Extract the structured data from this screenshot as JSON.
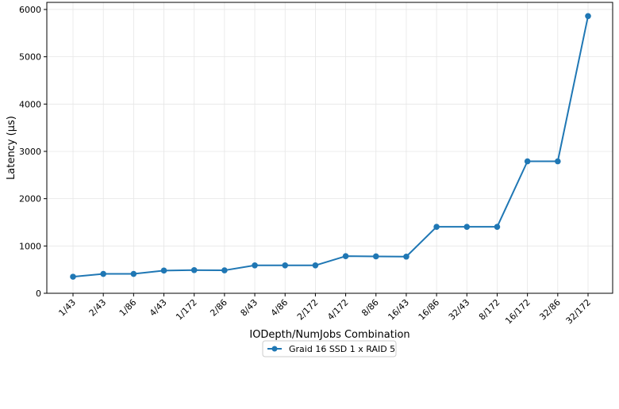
{
  "chart_data": {
    "type": "line",
    "title": "",
    "xlabel": "IODepth/NumJobs Combination",
    "ylabel": "Latency (µs)",
    "categories": [
      "1/43",
      "2/43",
      "1/86",
      "4/43",
      "1/172",
      "2/86",
      "8/43",
      "4/86",
      "2/172",
      "4/172",
      "8/86",
      "16/43",
      "16/86",
      "32/43",
      "8/172",
      "16/172",
      "32/86",
      "32/172"
    ],
    "ylim": [
      0,
      6150
    ],
    "yticks": [
      "0",
      "1000",
      "2000",
      "3000",
      "4000",
      "5000",
      "6000"
    ],
    "grid": true,
    "legend_position": "bottom-center",
    "series": [
      {
        "name": "Graid 16 SSD 1 x RAID 5",
        "color": "#1f77b4",
        "marker": "circle",
        "values": [
          350,
          410,
          410,
          480,
          490,
          485,
          590,
          590,
          590,
          785,
          780,
          775,
          1405,
          1405,
          1405,
          2790,
          2790,
          5860
        ]
      }
    ]
  }
}
